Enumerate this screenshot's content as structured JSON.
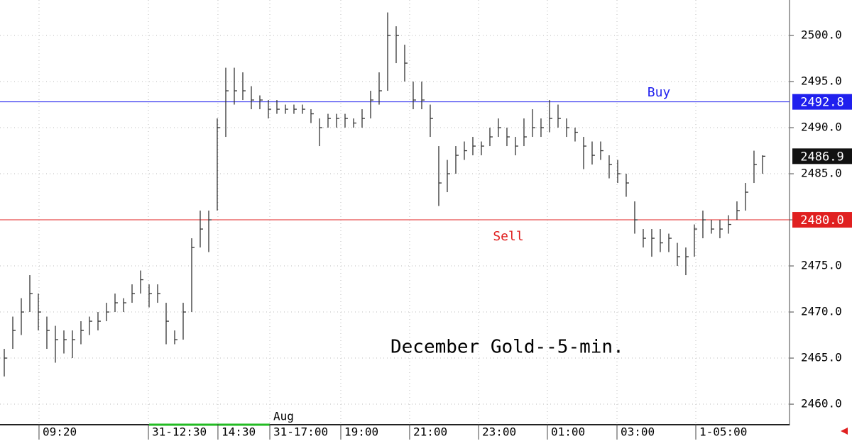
{
  "chart_data": {
    "type": "ohlc",
    "annotation": "December Gold--5-min.",
    "month_label": "Aug",
    "color": "#333333",
    "xlim": [
      -0.5,
      92.17
    ],
    "xticks": [
      {
        "value": 4.33,
        "label": "09:20"
      },
      {
        "value": 17.17,
        "label": "31-12:30"
      },
      {
        "value": 25.33,
        "label": "14:30"
      },
      {
        "value": 31.42,
        "label": "31-17:00"
      },
      {
        "value": 39.75,
        "label": "19:00"
      },
      {
        "value": 47.83,
        "label": "21:00"
      },
      {
        "value": 55.92,
        "label": "23:00"
      },
      {
        "value": 64,
        "label": "01:00"
      },
      {
        "value": 72.17,
        "label": "03:00"
      },
      {
        "value": 81.42,
        "label": "1-05:00"
      }
    ],
    "ylim": [
      2457.85,
      2503.85
    ],
    "yticks": [
      {
        "value": 2460,
        "label": "2460.0"
      },
      {
        "value": 2465,
        "label": "2465.0"
      },
      {
        "value": 2470,
        "label": "2470.0"
      },
      {
        "value": 2475,
        "label": "2475.0"
      },
      {
        "value": 2480,
        "label": "2480.0"
      },
      {
        "value": 2485,
        "label": "2485.0"
      },
      {
        "value": 2490,
        "label": "2490.0"
      },
      {
        "value": 2495,
        "label": "2495.0"
      },
      {
        "value": 2500,
        "label": "2500.0"
      }
    ],
    "grid": true,
    "levels": [
      {
        "name": "Buy",
        "value": 2492.8,
        "value_label": "2492.8",
        "color": "#2020ee"
      },
      {
        "name": "Sell",
        "value": 2480,
        "value_label": "2480.0",
        "color": "#e02020"
      }
    ],
    "last": {
      "value": 2486.9,
      "value_label": "2486.9",
      "color": "#111111"
    },
    "high": [
      2466,
      2469.5,
      2471.5,
      2474,
      2472,
      2469.5,
      2468.5,
      2468,
      2468,
      2469,
      2469.5,
      2470,
      2471,
      2472,
      2471.5,
      2473,
      2474.5,
      2473,
      2473,
      2471,
      2468,
      2471,
      2478,
      2481,
      2481,
      2491,
      2496.5,
      2496.5,
      2496,
      2494.5,
      2493.5,
      2493,
      2493,
      2492.5,
      2492.5,
      2492.5,
      2492,
      2491,
      2491.5,
      2491.5,
      2491.5,
      2491,
      2492,
      2494,
      2496,
      2502.5,
      2501,
      2499,
      2495,
      2495,
      2492.5,
      2488,
      2486.5,
      2488,
      2488.5,
      2489,
      2488.5,
      2490,
      2491,
      2490,
      2489,
      2491,
      2492,
      2491,
      2493,
      2492.5,
      2491,
      2490,
      2489,
      2488.5,
      2488.5,
      2487,
      2486.5,
      2485,
      2482,
      2479,
      2479,
      2479,
      2478.5,
      2477.5,
      2477,
      2479.5,
      2481,
      2480,
      2480,
      2480.5,
      2482,
      2484,
      2487.5,
      2487
    ],
    "low": [
      2463,
      2466,
      2467.5,
      2470,
      2468,
      2466,
      2464.5,
      2465.5,
      2465,
      2466.5,
      2467.5,
      2468,
      2469,
      2470,
      2470,
      2471,
      2472,
      2470.5,
      2471,
      2466.5,
      2466.5,
      2467,
      2470,
      2477,
      2476.5,
      2481,
      2489,
      2492.5,
      2493,
      2492,
      2492,
      2491,
      2491.5,
      2491.5,
      2491.5,
      2491.5,
      2490.5,
      2488,
      2490,
      2490,
      2490,
      2490,
      2490,
      2491,
      2492.5,
      2494,
      2497,
      2495,
      2492,
      2492,
      2489,
      2481.5,
      2483,
      2485,
      2486.5,
      2487,
      2487,
      2488,
      2489,
      2488,
      2487,
      2488,
      2489,
      2489,
      2489.5,
      2490,
      2489,
      2488.5,
      2485.5,
      2486,
      2486.5,
      2484.5,
      2484,
      2482.5,
      2478.5,
      2477,
      2476,
      2476.5,
      2476.5,
      2475,
      2474,
      2476,
      2478,
      2478.5,
      2478,
      2478.5,
      2480,
      2481,
      2484,
      2485
    ],
    "close": [
      2465,
      2468,
      2470,
      2472,
      2470,
      2468,
      2467,
      2467,
      2467,
      2468,
      2469,
      2469,
      2470,
      2471,
      2471,
      2472,
      2473.5,
      2472,
      2472,
      2469,
      2467,
      2470,
      2477,
      2479,
      2480,
      2490,
      2494,
      2494,
      2494,
      2493,
      2493,
      2492,
      2492,
      2492,
      2492,
      2492,
      2491.5,
      2490,
      2491,
      2491,
      2491,
      2490.5,
      2491,
      2493,
      2494,
      2500,
      2500,
      2497,
      2493,
      2493,
      2491,
      2484,
      2485,
      2487,
      2487.5,
      2488,
      2488,
      2489,
      2490,
      2489,
      2488,
      2489,
      2490,
      2490,
      2491,
      2491,
      2490,
      2489.5,
      2488,
      2487,
      2487.5,
      2486,
      2485,
      2484,
      2480,
      2478,
      2478,
      2477.5,
      2478,
      2476,
      2476,
      2479,
      2480,
      2479,
      2479,
      2479.5,
      2481,
      2483,
      2486,
      2486.9
    ]
  }
}
